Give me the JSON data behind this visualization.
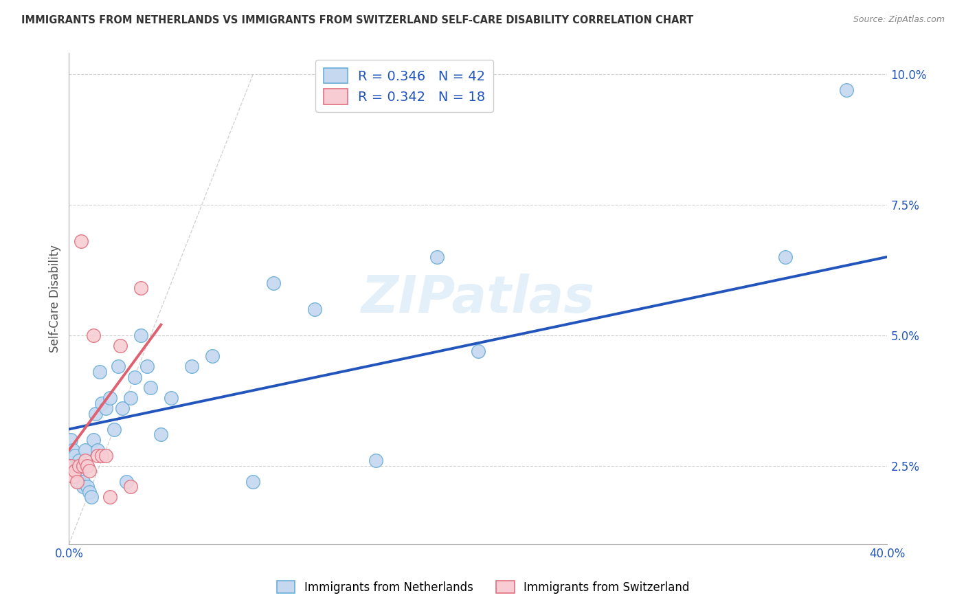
{
  "title": "IMMIGRANTS FROM NETHERLANDS VS IMMIGRANTS FROM SWITZERLAND SELF-CARE DISABILITY CORRELATION CHART",
  "source": "Source: ZipAtlas.com",
  "ylabel": "Self-Care Disability",
  "xlim": [
    0.0,
    0.4
  ],
  "ylim": [
    0.01,
    0.104
  ],
  "yticks": [
    0.025,
    0.05,
    0.075,
    0.1
  ],
  "ytick_labels": [
    "2.5%",
    "5.0%",
    "7.5%",
    "10.0%"
  ],
  "xtick_positions": [
    0.0,
    0.05,
    0.1,
    0.15,
    0.2,
    0.25,
    0.3,
    0.35,
    0.4
  ],
  "netherlands_color": "#c5d8f0",
  "netherlands_edge": "#6aaed6",
  "switzerland_color": "#f7cdd3",
  "switzerland_edge": "#e07080",
  "trend_netherlands_color": "#2255bb",
  "trend_switzerland_color": "#e06070",
  "R_netherlands": 0.346,
  "N_netherlands": 42,
  "R_switzerland": 0.342,
  "N_switzerland": 18,
  "watermark": "ZIPatlas",
  "netherlands_x": [
    0.001,
    0.002,
    0.003,
    0.003,
    0.004,
    0.005,
    0.005,
    0.006,
    0.007,
    0.007,
    0.008,
    0.009,
    0.01,
    0.011,
    0.012,
    0.013,
    0.014,
    0.015,
    0.016,
    0.018,
    0.02,
    0.022,
    0.024,
    0.026,
    0.028,
    0.03,
    0.032,
    0.035,
    0.038,
    0.04,
    0.045,
    0.05,
    0.06,
    0.07,
    0.09,
    0.1,
    0.12,
    0.15,
    0.18,
    0.2,
    0.35,
    0.38
  ],
  "netherlands_y": [
    0.03,
    0.028,
    0.027,
    0.025,
    0.025,
    0.026,
    0.022,
    0.024,
    0.022,
    0.021,
    0.028,
    0.021,
    0.02,
    0.019,
    0.03,
    0.035,
    0.028,
    0.043,
    0.037,
    0.036,
    0.038,
    0.032,
    0.044,
    0.036,
    0.022,
    0.038,
    0.042,
    0.05,
    0.044,
    0.04,
    0.031,
    0.038,
    0.044,
    0.046,
    0.022,
    0.06,
    0.055,
    0.026,
    0.065,
    0.047,
    0.065,
    0.097
  ],
  "switzerland_x": [
    0.001,
    0.002,
    0.003,
    0.004,
    0.005,
    0.006,
    0.007,
    0.008,
    0.009,
    0.01,
    0.012,
    0.014,
    0.016,
    0.018,
    0.02,
    0.025,
    0.03,
    0.035
  ],
  "switzerland_y": [
    0.025,
    0.023,
    0.024,
    0.022,
    0.025,
    0.068,
    0.025,
    0.026,
    0.025,
    0.024,
    0.05,
    0.027,
    0.027,
    0.027,
    0.019,
    0.048,
    0.021,
    0.059
  ],
  "ref_line_x": [
    0.0,
    0.09
  ],
  "ref_line_y": [
    0.01,
    0.1
  ],
  "trend_nl_x_start": 0.0,
  "trend_nl_x_end": 0.4,
  "trend_sw_x_start": 0.0,
  "trend_sw_x_end": 0.045
}
